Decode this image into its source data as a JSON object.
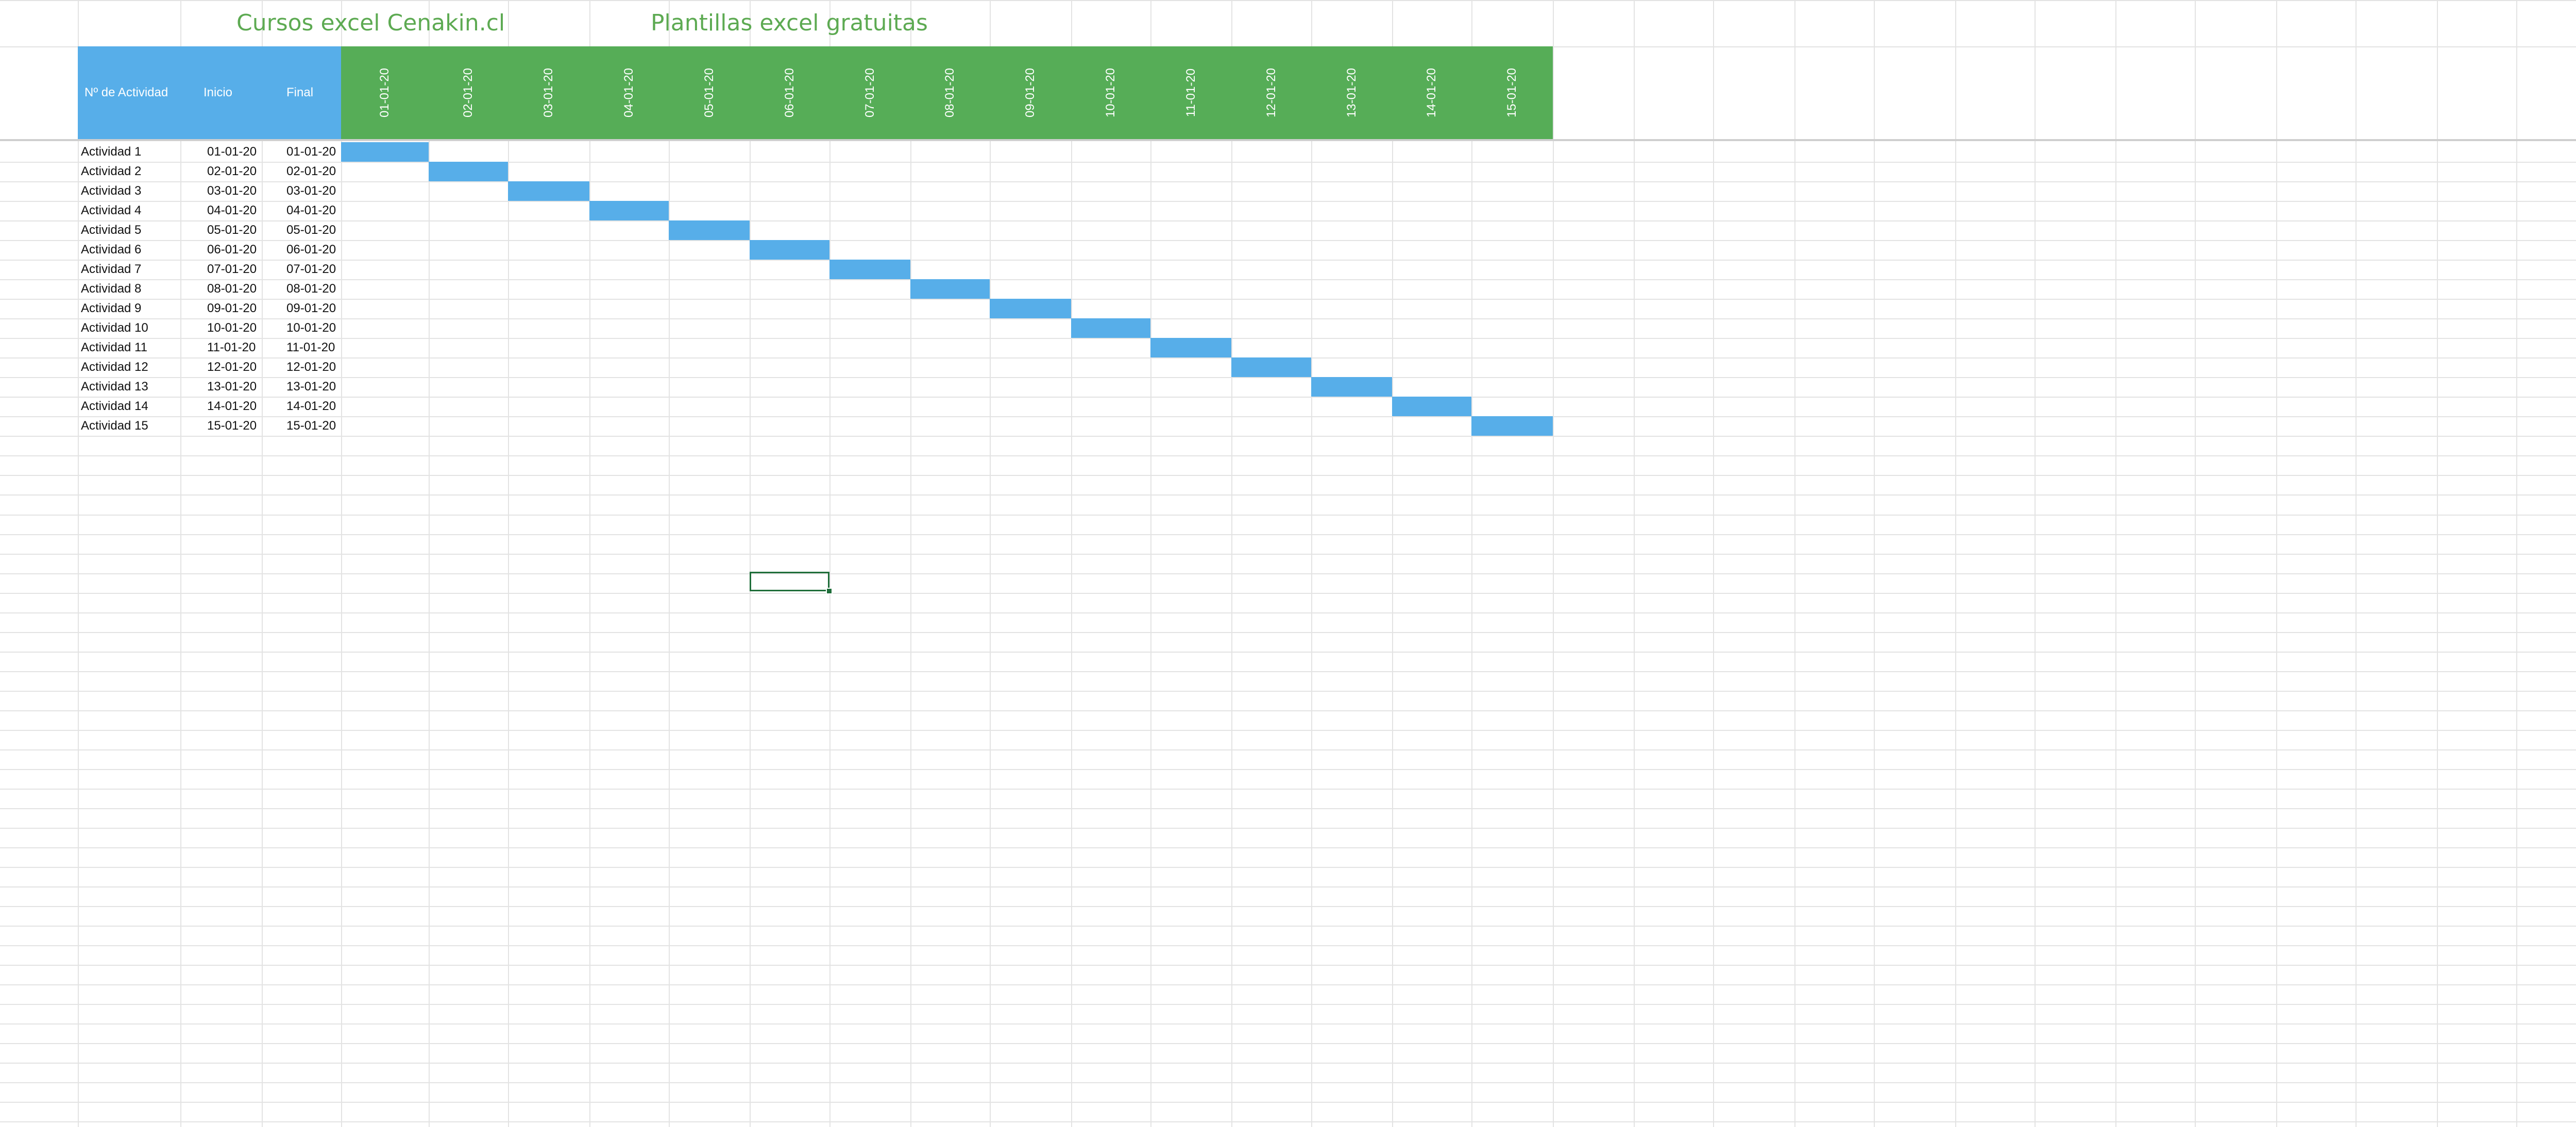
{
  "titles": {
    "left": "Cursos excel Cenakin.cl",
    "right": "Plantillas excel gratuitas"
  },
  "headers": {
    "activity": "Nº de Actividad",
    "start": "Inicio",
    "end": "Final"
  },
  "dates": [
    "01-01-20",
    "02-01-20",
    "03-01-20",
    "04-01-20",
    "05-01-20",
    "06-01-20",
    "07-01-20",
    "08-01-20",
    "09-01-20",
    "10-01-20",
    "11-01-20",
    "12-01-20",
    "13-01-20",
    "14-01-20",
    "15-01-20"
  ],
  "activities": [
    {
      "name": "Actividad 1",
      "start": "01-01-20",
      "end": "01-01-20"
    },
    {
      "name": "Actividad 2",
      "start": "02-01-20",
      "end": "02-01-20"
    },
    {
      "name": "Actividad 3",
      "start": "03-01-20",
      "end": "03-01-20"
    },
    {
      "name": "Actividad 4",
      "start": "04-01-20",
      "end": "04-01-20"
    },
    {
      "name": "Actividad 5",
      "start": "05-01-20",
      "end": "05-01-20"
    },
    {
      "name": "Actividad 6",
      "start": "06-01-20",
      "end": "06-01-20"
    },
    {
      "name": "Actividad 7",
      "start": "07-01-20",
      "end": "07-01-20"
    },
    {
      "name": "Actividad 8",
      "start": "08-01-20",
      "end": "08-01-20"
    },
    {
      "name": "Actividad 9",
      "start": "09-01-20",
      "end": "09-01-20"
    },
    {
      "name": "Actividad 10",
      "start": "10-01-20",
      "end": "10-01-20"
    },
    {
      "name": "Actividad 11",
      "start": "11-01-20",
      "end": "11-01-20"
    },
    {
      "name": "Actividad 12",
      "start": "12-01-20",
      "end": "12-01-20"
    },
    {
      "name": "Actividad 13",
      "start": "13-01-20",
      "end": "13-01-20"
    },
    {
      "name": "Actividad 14",
      "start": "14-01-20",
      "end": "14-01-20"
    },
    {
      "name": "Actividad 15",
      "start": "15-01-20",
      "end": "15-01-20"
    }
  ],
  "colors": {
    "title_green": "#5daa52",
    "blue_header": "#57aee9",
    "green_header": "#56ad57",
    "gantt_bar": "#57aee9",
    "selection": "#1f6e3a"
  }
}
